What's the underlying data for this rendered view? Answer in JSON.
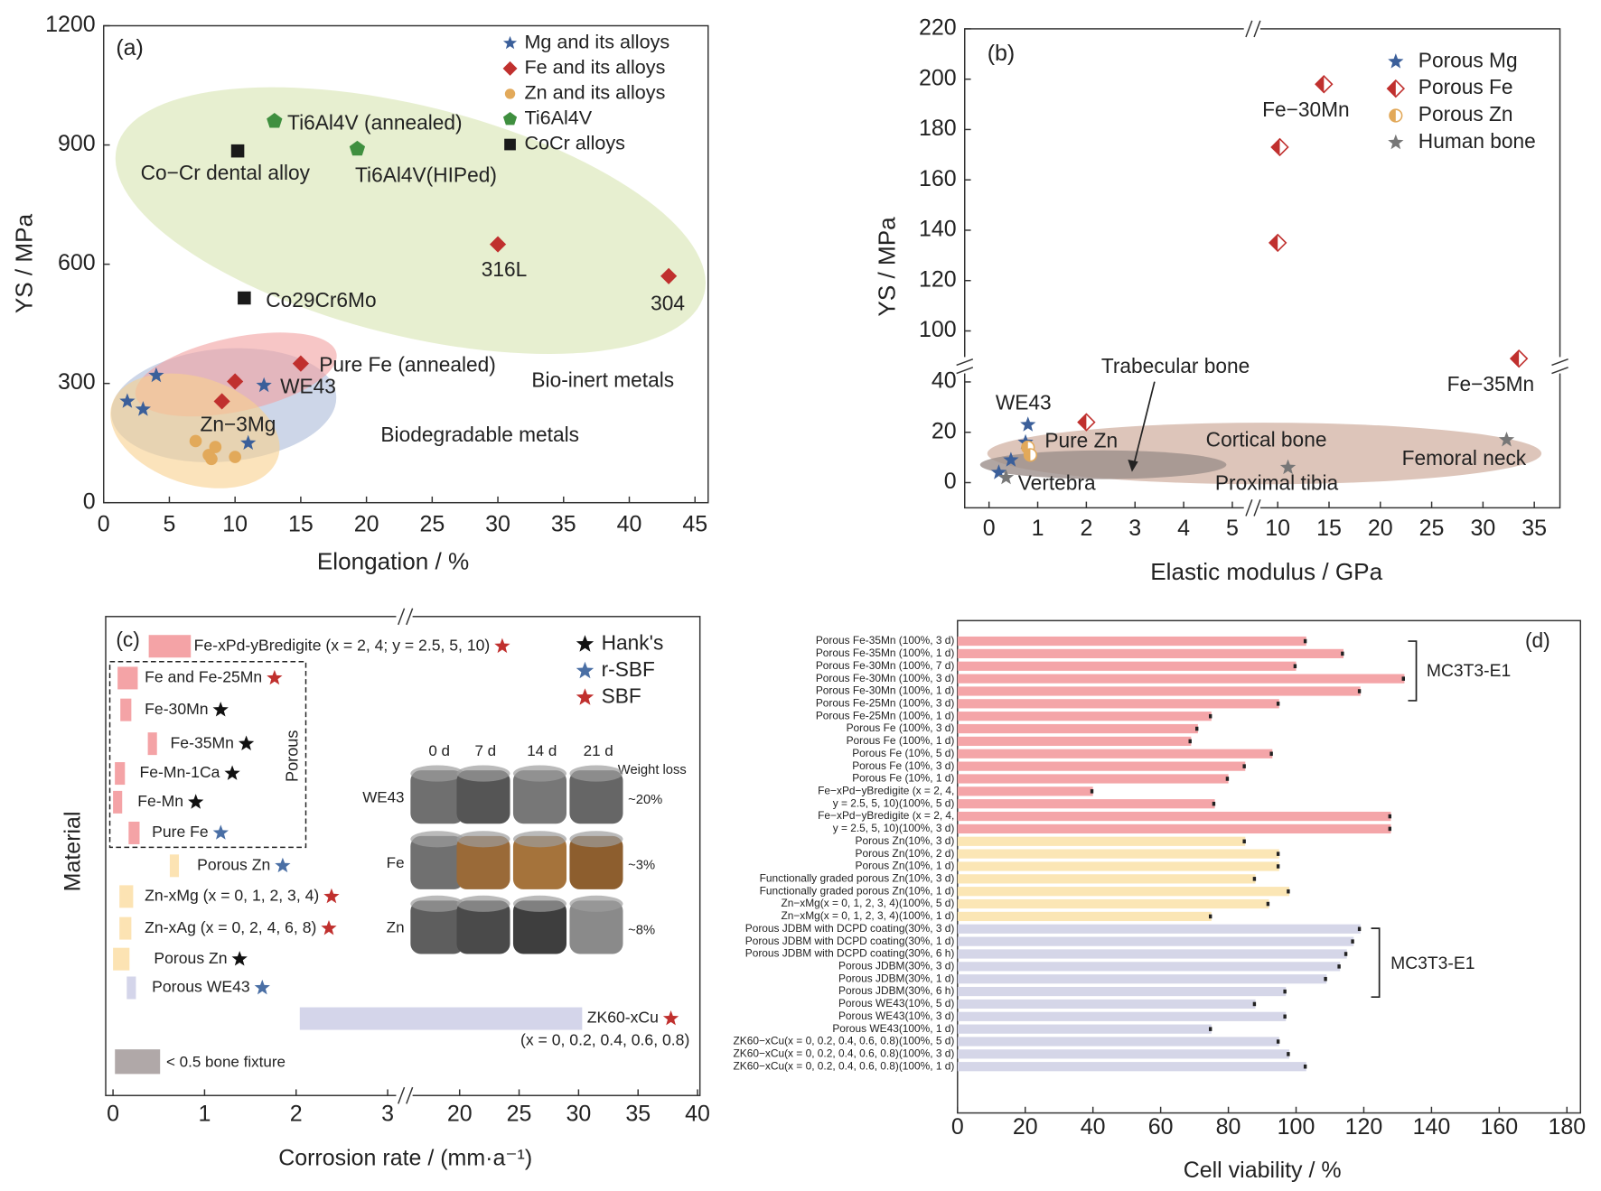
{
  "chart_data": [
    {
      "type": "scatter",
      "panel": "(a)",
      "xlabel": "Elongation / %",
      "ylabel": "YS / MPa",
      "xlim": [
        0,
        46
      ],
      "ylim": [
        0,
        1200
      ],
      "xticks": [
        0,
        5,
        10,
        15,
        20,
        25,
        30,
        35,
        40,
        45
      ],
      "yticks": [
        0,
        300,
        600,
        900,
        1200
      ],
      "legend": "upper right",
      "series": [
        {
          "name": "Mg and its alloys",
          "color": "#3b5f9a",
          "marker": "star",
          "x": [
            1.8,
            3,
            4,
            11,
            12.2
          ],
          "y": [
            255,
            235,
            320,
            150,
            295
          ]
        },
        {
          "name": "Fe and its alloys",
          "color": "#c0302e",
          "marker": "diamond",
          "x": [
            9,
            10,
            15,
            30,
            43
          ],
          "y": [
            255,
            305,
            350,
            650,
            570
          ]
        },
        {
          "name": "Zn and its alloys",
          "color": "#e2a95a",
          "marker": "circle",
          "x": [
            7,
            8,
            8.2,
            10,
            8.5
          ],
          "y": [
            155,
            120,
            110,
            115,
            140
          ]
        },
        {
          "name": "Ti6Al4V",
          "color": "#3f8f3f",
          "marker": "pentagon",
          "x": [
            13,
            19.3
          ],
          "y": [
            960,
            890
          ]
        },
        {
          "name": "CoCr alloys",
          "color": "#1a1a1a",
          "marker": "square",
          "x": [
            10.2,
            10.7
          ],
          "y": [
            885,
            515
          ]
        }
      ],
      "annotations": [
        "Ti6Al4V (annealed)",
        "Co−Cr dental alloy",
        "Ti6Al4V(HIPed)",
        "316L",
        "304",
        "Co29Cr6Mo",
        "Pure Fe (annealed)",
        "WE43",
        "Zn−3Mg",
        "Bio-inert metals",
        "Biodegradable metals"
      ]
    },
    {
      "type": "scatter",
      "panel": "(b)",
      "xlabel": "Elastic modulus / GPa",
      "ylabel": "YS / MPa",
      "x_segments": [
        {
          "lim": [
            -0.5,
            5.3
          ],
          "ticks": [
            0,
            1,
            2,
            3,
            4,
            5
          ]
        },
        {
          "lim": [
            8,
            37.5
          ],
          "ticks": [
            10,
            15,
            20,
            25,
            30,
            35
          ]
        }
      ],
      "y_segments": [
        {
          "lim": [
            -10,
            45
          ],
          "ticks": [
            0,
            20,
            40
          ]
        },
        {
          "lim": [
            88,
            220
          ],
          "ticks": [
            100,
            120,
            140,
            160,
            180,
            200,
            220
          ]
        }
      ],
      "legend": "upper right",
      "series": [
        {
          "name": "Porous Mg",
          "color": "#3b5f9a",
          "marker": "star",
          "x": [
            0.8,
            0.75,
            0.45,
            0.2
          ],
          "y": [
            23,
            16,
            9,
            4
          ]
        },
        {
          "name": "Porous Fe",
          "color": "#c0302e",
          "marker": "diamond",
          "x": [
            14.5,
            10.2,
            10,
            33.5,
            2
          ],
          "y": [
            198,
            173,
            135,
            89,
            24
          ]
        },
        {
          "name": "Porous Zn",
          "color": "#e2a95a",
          "marker": "circle",
          "x": [
            0.8,
            0.85
          ],
          "y": [
            14,
            11
          ]
        },
        {
          "name": "Human bone",
          "color": "#777777",
          "marker": "star",
          "x": [
            0.35,
            11,
            32.3
          ],
          "y": [
            2,
            6,
            17
          ]
        }
      ],
      "annotations": [
        "Fe−30Mn",
        "Trabecular bone",
        "WE43",
        "Pure Zn",
        "Cortical bone",
        "Femoral neck",
        "Vertebra",
        "Proximal tibia",
        "Fe−35Mn"
      ]
    },
    {
      "type": "range_bar",
      "panel": "(c)",
      "xlabel": "Corrosion rate / (mm·a⁻¹)",
      "ylabel": "Material",
      "x_segments": [
        {
          "lim": [
            -0.08,
            3.16
          ],
          "ticks": [
            0,
            1,
            2,
            3
          ]
        },
        {
          "lim": [
            15.7,
            40.2
          ],
          "ticks": [
            20,
            25,
            30,
            35,
            40
          ]
        }
      ],
      "categories": [
        "Fe-xPd-yBredigite (x = 2, 4; y = 2.5, 5, 10)",
        "Fe and Fe-25Mn",
        "Fe-30Mn",
        "Fe-35Mn",
        "Fe-Mn-1Ca",
        "Fe-Mn",
        "Pure Fe",
        "Porous Zn",
        "Zn-xMg (x = 0, 1, 2, 3, 4)",
        "Zn-xAg (x = 0, 2, 4, 6, 8)",
        "Porous Zn",
        "Porous WE43",
        "ZK60-xCu"
      ],
      "category_note": "(x = 0, 0.2, 0.4, 0.6, 0.8)",
      "ranges": [
        [
          0.39,
          0.85
        ],
        [
          0.05,
          0.27
        ],
        [
          0.08,
          0.2
        ],
        [
          0.38,
          0.48
        ],
        [
          0.02,
          0.13
        ],
        [
          0,
          0.1
        ],
        [
          0.17,
          0.29
        ],
        [
          0.62,
          0.72
        ],
        [
          0.07,
          0.22
        ],
        [
          0.07,
          0.2
        ],
        [
          0,
          0.18
        ],
        [
          0.15,
          0.25
        ],
        [
          2.04,
          30.3
        ]
      ],
      "colors": [
        "#f4a3a6",
        "#f4a3a6",
        "#f4a3a6",
        "#f4a3a6",
        "#f4a3a6",
        "#f4a3a6",
        "#f4a3a6",
        "#fce3b3",
        "#fce3b3",
        "#fce3b3",
        "#fce3b3",
        "#d4d5ea",
        "#d4d5ea"
      ],
      "medium": [
        2,
        2,
        0,
        0,
        0,
        0,
        1,
        1,
        2,
        2,
        0,
        1,
        2
      ],
      "media": [
        {
          "name": "Hank's",
          "color": "#111111"
        },
        {
          "name": "r-SBF",
          "color": "#4a6fa5"
        },
        {
          "name": "SBF",
          "color": "#c0302e"
        }
      ],
      "box_label": "Porous",
      "fixture_label": "< 0.5 bone fixture",
      "inset": {
        "columns": [
          "0 d",
          "7 d",
          "14 d",
          "21 d"
        ],
        "rows": [
          "WE43",
          "Fe",
          "Zn"
        ],
        "header": "Weight loss",
        "weight_loss": [
          "~20%",
          "~3%",
          "~8%"
        ]
      }
    },
    {
      "type": "bar",
      "orientation": "horizontal",
      "panel": "(d)",
      "xlabel": "Cell viability / %",
      "xlim": [
        0,
        184
      ],
      "xticks": [
        0,
        20,
        40,
        60,
        80,
        100,
        120,
        140,
        160,
        180
      ],
      "series": [
        {
          "color": "#f4a5a8",
          "categories": [
            "Porous Fe-35Mn (100%, 3 d)",
            "Porous Fe-35Mn (100%, 1 d)",
            "Porous Fe-30Mn (100%, 7 d)",
            "Porous Fe-30Mn (100%, 3 d)",
            "Porous Fe-30Mn (100%, 1 d)",
            "Porous Fe-25Mn (100%, 3 d)",
            "Porous Fe-25Mn (100%, 1 d)",
            "Porous Fe (100%, 3 d)",
            "Porous Fe (100%, 1 d)",
            "Porous Fe (10%, 5 d)",
            "Porous Fe (10%, 3 d)",
            "Porous Fe (10%, 1 d)",
            "Fe−xPd−yBredigite (x = 2, 4,",
            "y = 2.5, 5, 10)(100%, 5 d)",
            "Fe−xPd−yBredigite (x = 2, 4,",
            "y = 2.5, 5, 10)(100%, 3 d)"
          ],
          "values": [
            103,
            114,
            100,
            132,
            119,
            95,
            75,
            71,
            69,
            93,
            85,
            80,
            40,
            76,
            128,
            128
          ]
        },
        {
          "color": "#fbe6b5",
          "categories": [
            "Porous Zn(10%, 3 d)",
            "Porous Zn(10%, 2 d)",
            "Porous Zn(10%, 1 d)",
            "Functionally graded porous Zn(10%, 3 d)",
            "Functionally graded porous Zn(10%, 1 d)",
            "Zn−xMg(x = 0, 1, 2, 3, 4)(100%, 5 d)",
            "Zn−xMg(x = 0, 1, 2, 3, 4)(100%, 1 d)"
          ],
          "values": [
            85,
            95,
            95,
            88,
            98,
            92,
            75
          ]
        },
        {
          "color": "#d5d6e8",
          "categories": [
            "Porous JDBM with DCPD coating(30%, 3 d)",
            "Porous JDBM with DCPD coating(30%, 1 d)",
            "Porous JDBM with DCPD coating(30%, 6 h)",
            "Porous JDBM(30%, 3 d)",
            "Porous JDBM(30%, 1 d)",
            "Porous JDBM(30%, 6 h)",
            "Porous WE43(10%, 5 d)",
            "Porous WE43(10%, 3 d)",
            "Porous WE43(100%, 1 d)",
            "ZK60−xCu(x = 0, 0.2, 0.4, 0.6, 0.8)(100%, 5 d)",
            "ZK60−xCu(x = 0, 0.2, 0.4, 0.6, 0.8)(100%, 3 d)",
            "ZK60−xCu(x = 0, 0.2, 0.4, 0.6, 0.8)(100%, 1 d)"
          ],
          "values": [
            119,
            117,
            115,
            113,
            109,
            97,
            88,
            97,
            75,
            95,
            98,
            103
          ]
        }
      ],
      "annotations": [
        "MC3T3-E1",
        "MC3T3-E1"
      ]
    }
  ]
}
